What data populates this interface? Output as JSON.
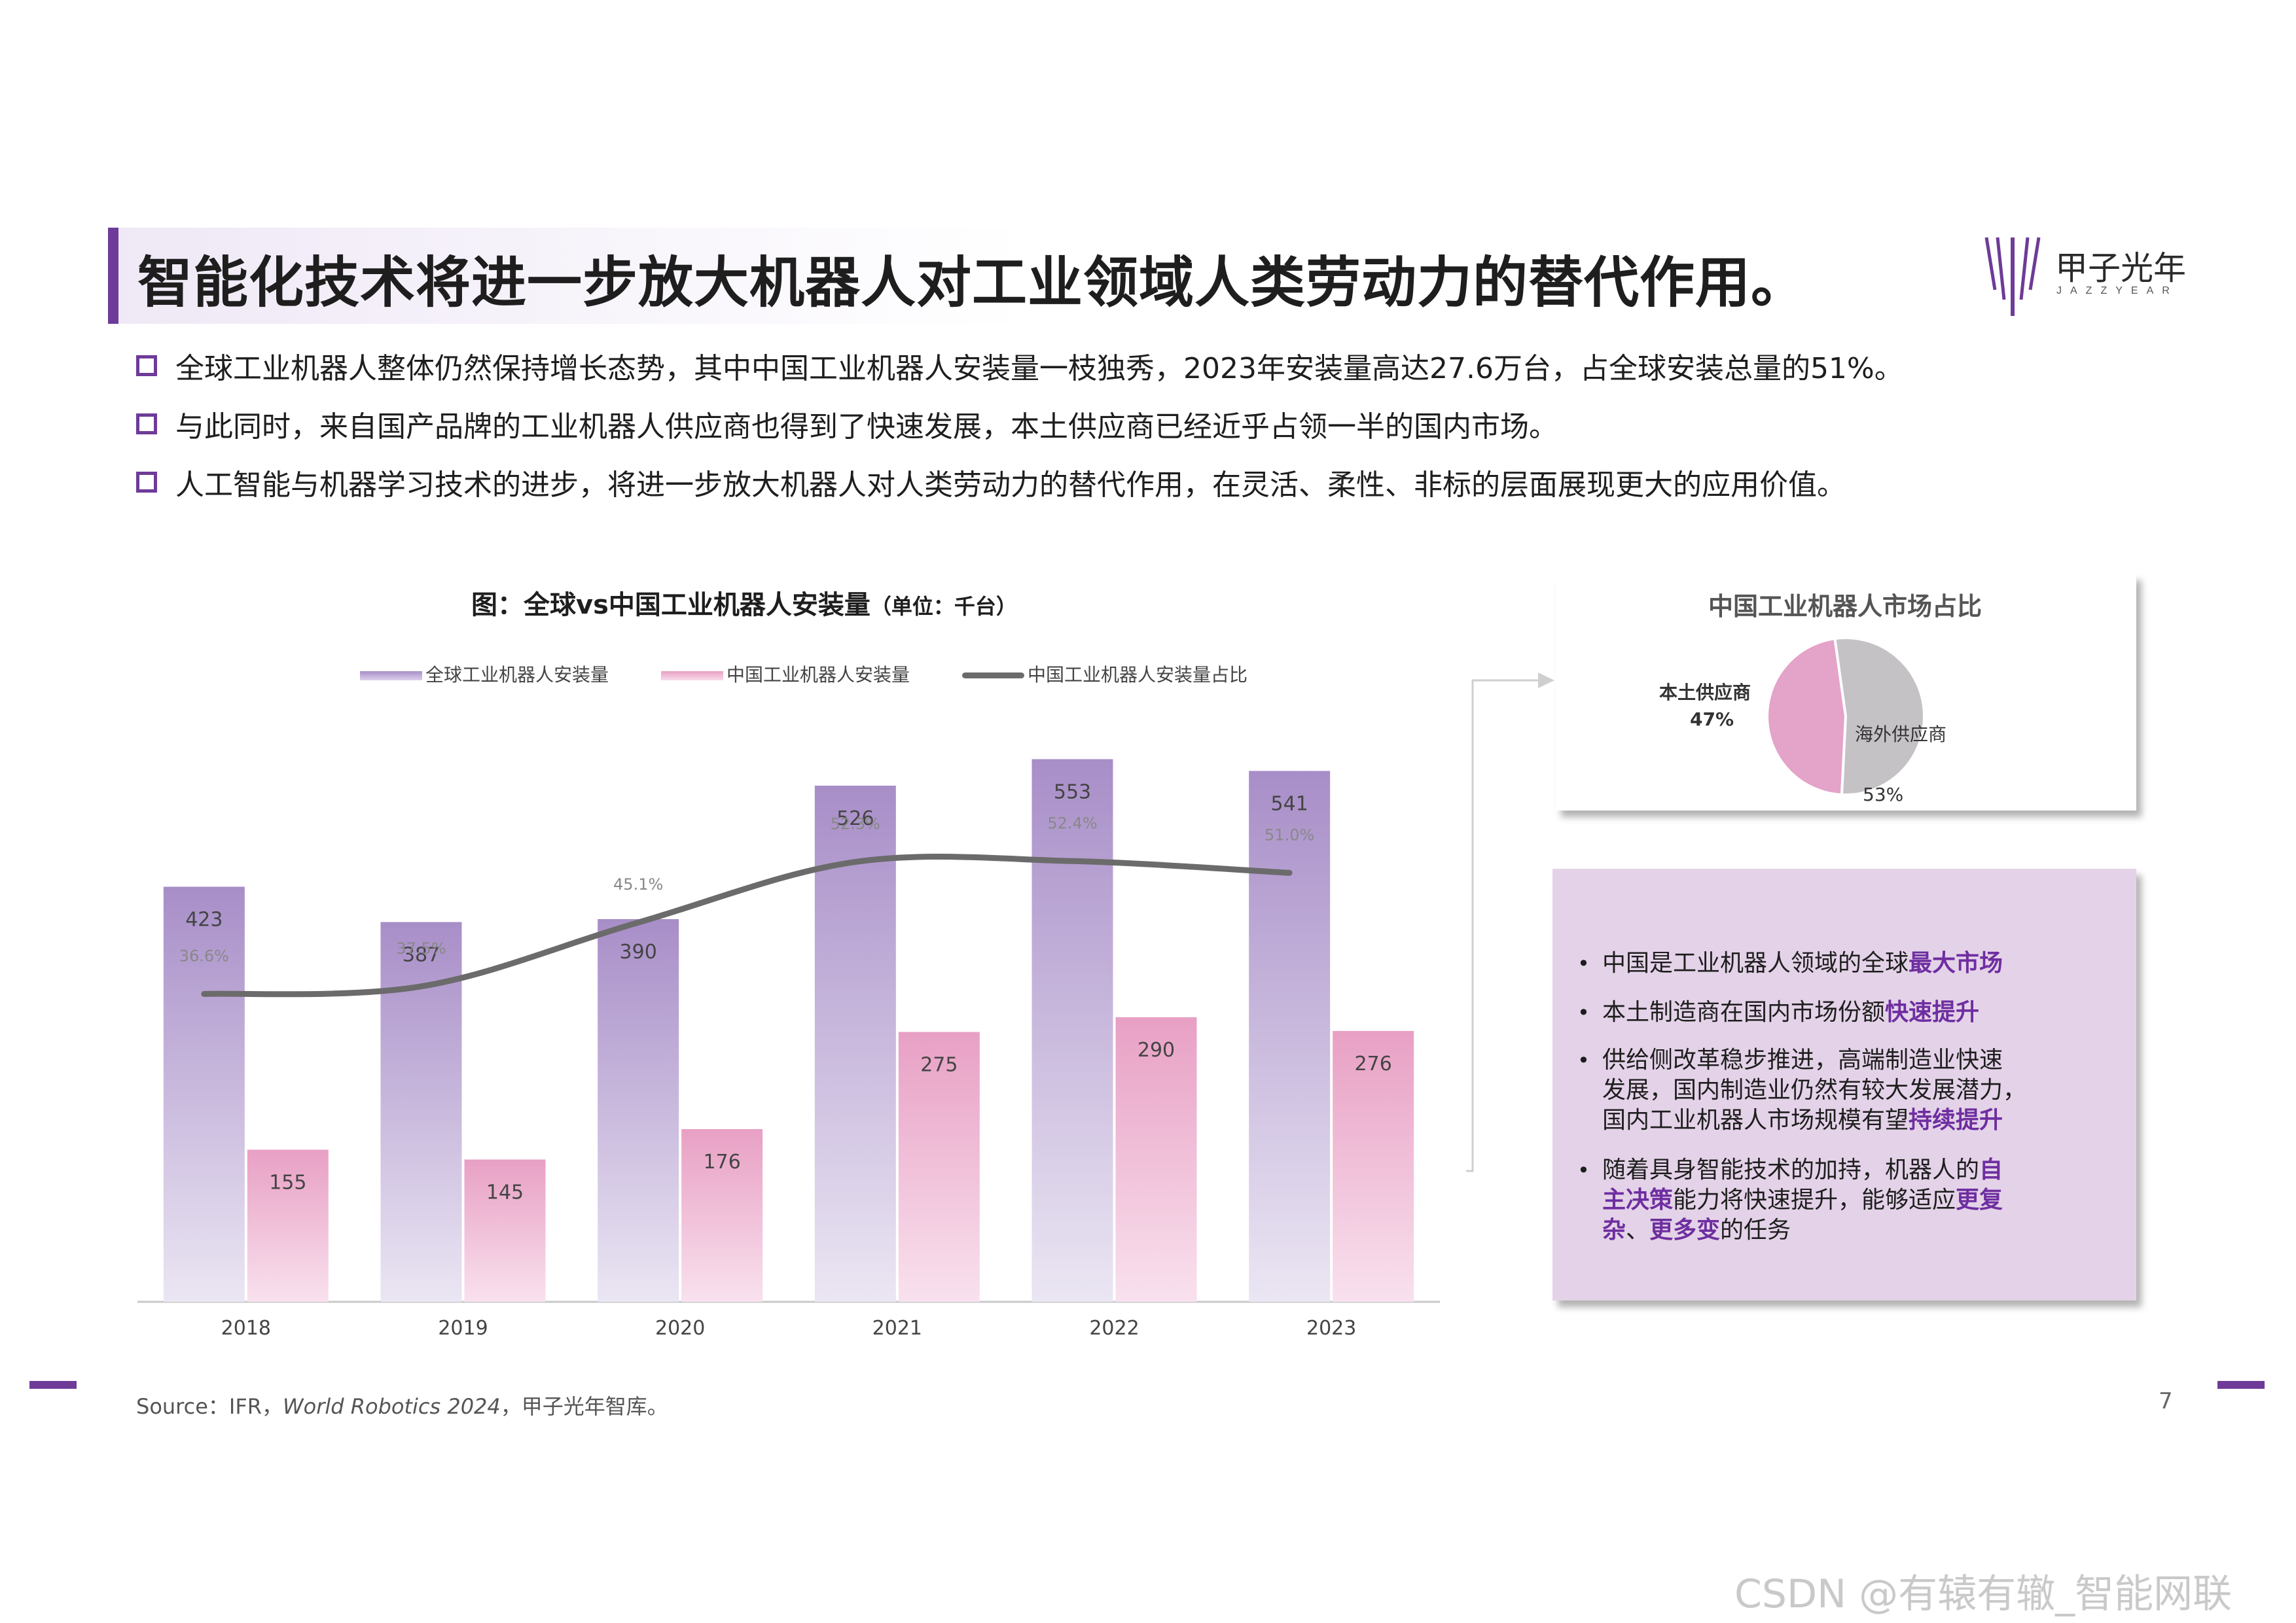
{
  "title": "智能化技术将进一步放大机器人对工业领域人类劳动力的替代作用。",
  "logo": {
    "cn": "甲子光年",
    "en": "JAZZYEAR"
  },
  "bullets": [
    "全球工业机器人整体仍然保持增长态势，其中中国工业机器人安装量一枝独秀，2023年安装量高达27.6万台，占全球安装总量的51%。",
    "与此同时，来自国产品牌的工业机器人供应商也得到了快速发展，本土供应商已经近乎占领一半的国内市场。",
    "人工智能与机器学习技术的进步，将进一步放大机器人对人类劳动力的替代作用，在灵活、柔性、非标的层面展现更大的应用价值。"
  ],
  "chart_title": "图：全球vs中国工业机器人安装量",
  "chart_unit": "（单位：千台）",
  "chart_data": [
    {
      "type": "bar",
      "categories": [
        "2018",
        "2019",
        "2020",
        "2021",
        "2022",
        "2023"
      ],
      "series": [
        {
          "name": "全球工业机器人安装量",
          "values": [
            423,
            387,
            390,
            526,
            553,
            541
          ],
          "color": "#a88ec8"
        },
        {
          "name": "中国工业机器人安装量",
          "values": [
            155,
            145,
            176,
            275,
            290,
            276
          ],
          "color": "#e8a0c4"
        },
        {
          "name": "中国工业机器人安装量占比",
          "values": [
            36.6,
            37.5,
            45.1,
            52.3,
            52.4,
            51.0
          ],
          "labels": [
            "36.6%",
            "37.5%",
            "45.1%",
            "52.3%",
            "52.4%",
            "51.0%"
          ],
          "type": "line",
          "color": "#6b6b6b"
        }
      ],
      "ylim": [
        0,
        600
      ],
      "y2lim": [
        0,
        70
      ],
      "grid": false,
      "legend": "top"
    },
    {
      "type": "pie",
      "title": "中国工业机器人市场占比",
      "slices": [
        {
          "label": "本土供应商",
          "value": 47,
          "display": "47%",
          "color": "#e4a3c9"
        },
        {
          "label": "海外供应商",
          "value": 53,
          "display": "53%",
          "color": "#c5c2c5"
        }
      ]
    }
  ],
  "info_box": {
    "items": [
      {
        "text": "中国是工业机器人领域的全球",
        "highlight": "最大市场",
        "tail": ""
      },
      {
        "text": "本土制造商在国内市场份额",
        "highlight": "快速提升",
        "tail": ""
      },
      {
        "lines": [
          "供给侧改革稳步推进，高端制造业快速",
          "发展，国内制造业仍然有较大发展潜力，",
          "国内工业机器人市场规模有望"
        ],
        "highlight": "持续提升",
        "tail": ""
      },
      {
        "lines": [
          "随着具身智能技术的加持，机器人的"
        ],
        "highlight_segments": [
          "自",
          "主决策",
          "更复",
          "杂",
          "更多变"
        ],
        "mid1": "能力将快速提升，能够适应",
        "mid2": "、",
        "tail": "的任务"
      }
    ]
  },
  "source": "Source：IFR，",
  "source_italic": "World Robotics 2024",
  "source_tail": "，甲子光年智库。",
  "page_number": "7",
  "csdn": "CSDN @有辕有辙_智能网联",
  "colors": {
    "brand": "#6e3b98",
    "highlight": "#6e2ea0"
  }
}
